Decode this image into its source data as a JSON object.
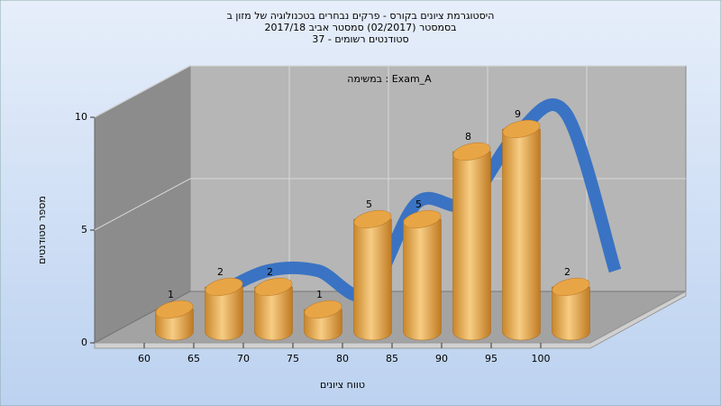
{
  "chart_data": {
    "type": "histogram",
    "title": [
      "היסטוגרמת ציונים בקורס - פרקים נבחרים בטכנולוגיה של מזון ב",
      "בסמסטר  (02/2017)  סמסטר אביב 2017/18",
      "סטודנטים רשומים - 37"
    ],
    "annotation": "במשימה : Exam_A",
    "x_label": "טווח ציונים",
    "y_label": "מספר סטודנטים",
    "bins": [
      60,
      65,
      70,
      75,
      80,
      85,
      90,
      95,
      100,
      105
    ],
    "values": [
      1,
      2,
      2,
      1,
      5,
      5,
      8,
      9,
      2
    ],
    "color": "#e8a545",
    "trend_color": "#3470c4",
    "xlim": [
      55,
      105
    ],
    "xticks": [
      60,
      65,
      70,
      75,
      80,
      85,
      90,
      95,
      100
    ],
    "ylim": [
      0,
      10
    ],
    "yticks": [
      0,
      5,
      10
    ],
    "grid": true
  }
}
